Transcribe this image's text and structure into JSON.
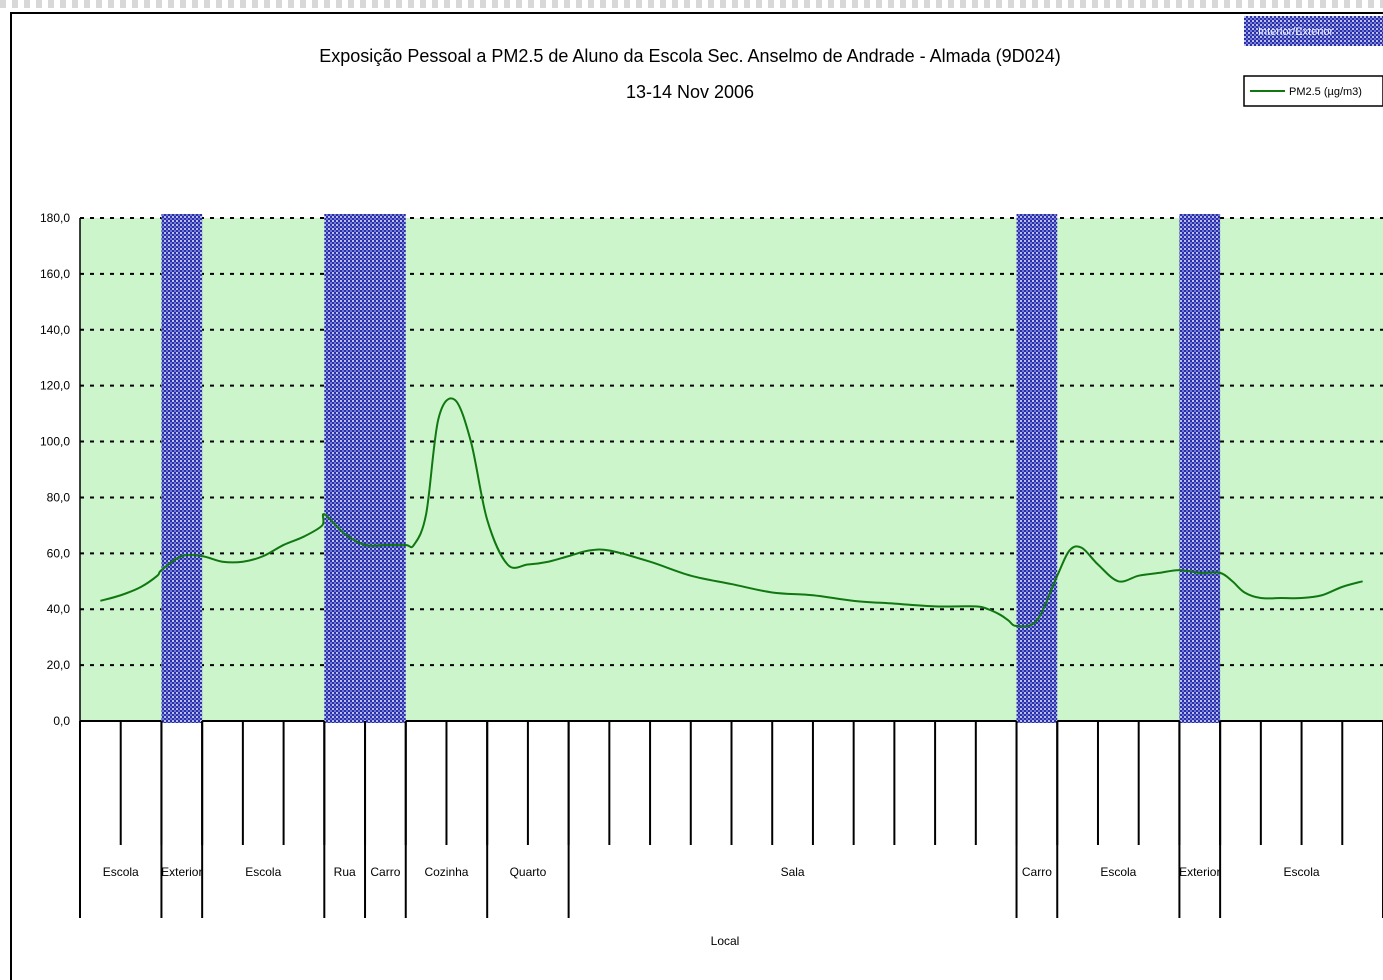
{
  "chart_data": {
    "type": "line",
    "title": "Exposição Pessoal a PM2.5 de Aluno da Escola Sec. Anselmo de Andrade - Almada (9D024)",
    "subtitle": "13-14 Nov 2006",
    "xlabel": "Local",
    "ylabel": "",
    "ylim": [
      0,
      180
    ],
    "yticks": [
      "0,0",
      "20,0",
      "40,0",
      "60,0",
      "80,0",
      "100,0",
      "120,0",
      "140,0",
      "160,0",
      "180,0"
    ],
    "grid": true,
    "legend": {
      "placement": "top-right",
      "items": [
        {
          "label": "Interior/Exterior",
          "kind": "band"
        },
        {
          "label": "PM2.5 (µg/m3)",
          "kind": "line"
        }
      ]
    },
    "x_range": [
      0,
      32
    ],
    "categories": [
      {
        "label": "Escola",
        "start": 0,
        "end": 2
      },
      {
        "label": "Exterior",
        "start": 2,
        "end": 3
      },
      {
        "label": "Escola",
        "start": 3,
        "end": 6
      },
      {
        "label": "Rua",
        "start": 6,
        "end": 7
      },
      {
        "label": "Carro",
        "start": 7,
        "end": 8
      },
      {
        "label": "Cozinha",
        "start": 8,
        "end": 10
      },
      {
        "label": "Quarto",
        "start": 10,
        "end": 12
      },
      {
        "label": "Sala",
        "start": 12,
        "end": 23
      },
      {
        "label": "Carro",
        "start": 23,
        "end": 24
      },
      {
        "label": "Escola",
        "start": 24,
        "end": 27
      },
      {
        "label": "Exterior",
        "start": 27,
        "end": 28
      },
      {
        "label": "Escola",
        "start": 28,
        "end": 32
      }
    ],
    "bands": [
      {
        "start": 2,
        "end": 3
      },
      {
        "start": 6,
        "end": 8
      },
      {
        "start": 23,
        "end": 24
      },
      {
        "start": 27,
        "end": 28
      }
    ],
    "series": [
      {
        "name": "PM2.5 (µg/m3)",
        "x": [
          0.5,
          1.0,
          1.5,
          1.9,
          2.0,
          2.5,
          3.0,
          3.5,
          4.0,
          4.5,
          5.0,
          5.5,
          5.95,
          6.0,
          6.5,
          7.0,
          7.5,
          8.0,
          8.2,
          8.5,
          8.8,
          9.2,
          9.6,
          10.0,
          10.5,
          11.0,
          11.5,
          12.0,
          12.5,
          13.0,
          14.0,
          15.0,
          16.0,
          17.0,
          18.0,
          19.0,
          20.0,
          21.0,
          22.0,
          22.3,
          22.6,
          22.8,
          23.0,
          23.5,
          24.0,
          24.3,
          24.6,
          25.0,
          25.5,
          26.0,
          26.5,
          27.0,
          27.5,
          28.0,
          28.3,
          28.6,
          29.0,
          29.5,
          30.0,
          30.5,
          31.0,
          31.5
        ],
        "values": [
          43,
          45,
          48,
          52,
          54,
          59,
          59,
          57,
          57,
          59,
          63,
          66,
          70,
          74,
          67,
          63,
          63,
          63,
          63,
          74,
          108,
          115,
          100,
          72,
          56,
          56,
          57,
          59,
          61,
          61,
          57,
          52,
          49,
          46,
          45,
          43,
          42,
          41,
          41,
          40,
          38,
          36,
          34,
          36,
          52,
          61,
          62,
          56,
          50,
          52,
          53,
          54,
          53,
          53,
          50,
          46,
          44,
          44,
          44,
          45,
          48,
          50
        ]
      }
    ]
  }
}
